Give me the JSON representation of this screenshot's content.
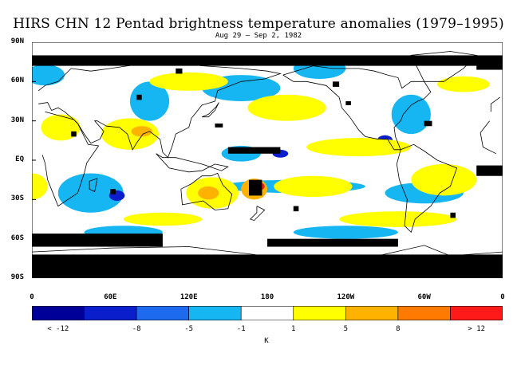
{
  "header": {
    "title": "HIRS CHN 12 Pentad brightness temperature anomalies (1979–1995)",
    "subtitle": "Aug 29 – Sep 2, 1982"
  },
  "axes": {
    "lat_ticks": [
      {
        "label": "90N",
        "lat": 90
      },
      {
        "label": "60N",
        "lat": 60
      },
      {
        "label": "30N",
        "lat": 30
      },
      {
        "label": "EQ",
        "lat": 0
      },
      {
        "label": "30S",
        "lat": -30
      },
      {
        "label": "60S",
        "lat": -60
      },
      {
        "label": "90S",
        "lat": -90
      }
    ],
    "lon_ticks": [
      {
        "label": "0",
        "lon": 0
      },
      {
        "label": "60E",
        "lon": 60
      },
      {
        "label": "120E",
        "lon": 120
      },
      {
        "label": "180",
        "lon": 180
      },
      {
        "label": "120W",
        "lon": 240
      },
      {
        "label": "60W",
        "lon": 300
      },
      {
        "label": "0",
        "lon": 360
      }
    ]
  },
  "legend": {
    "unit": "K",
    "bins": [
      {
        "color": "#000099"
      },
      {
        "color": "#0a1ecc"
      },
      {
        "color": "#1e6aee"
      },
      {
        "color": "#16b6f2"
      },
      {
        "color": "#ffffff"
      },
      {
        "color": "#ffff00"
      },
      {
        "color": "#ffb300"
      },
      {
        "color": "#ff7a00"
      },
      {
        "color": "#ff1a1a"
      }
    ],
    "labels": [
      {
        "text": "< -12",
        "pos": 0.5
      },
      {
        "text": "-8",
        "pos": 2
      },
      {
        "text": "-5",
        "pos": 3
      },
      {
        "text": "-1",
        "pos": 4
      },
      {
        "text": "1",
        "pos": 5
      },
      {
        "text": "5",
        "pos": 6
      },
      {
        "text": "8",
        "pos": 7
      },
      {
        "text": "> 12",
        "pos": 8.5
      }
    ],
    "missing_color": "#000000"
  },
  "map": {
    "projection": "cylindrical equidistant",
    "lon_range": [
      0,
      360
    ],
    "lat_range": [
      -90,
      90
    ],
    "features": {
      "yellow": [
        {
          "lon": 75,
          "lat": 20,
          "rlon": 22,
          "rlat": 12
        },
        {
          "lon": 22,
          "lat": 25,
          "rlon": 15,
          "rlat": 10
        },
        {
          "lon": 138,
          "lat": -25,
          "rlon": 20,
          "rlat": 12
        },
        {
          "lon": 215,
          "lat": -20,
          "rlon": 30,
          "rlat": 8
        },
        {
          "lon": 250,
          "lat": 10,
          "rlon": 40,
          "rlat": 7
        },
        {
          "lon": 315,
          "lat": -15,
          "rlon": 25,
          "rlat": 12
        },
        {
          "lon": 0,
          "lat": -20,
          "rlon": 12,
          "rlat": 10
        },
        {
          "lon": 195,
          "lat": 40,
          "rlon": 30,
          "rlat": 10
        },
        {
          "lon": 280,
          "lat": -45,
          "rlon": 45,
          "rlat": 6
        },
        {
          "lon": 120,
          "lat": 60,
          "rlon": 30,
          "rlat": 7
        },
        {
          "lon": 330,
          "lat": 58,
          "rlon": 20,
          "rlat": 6
        },
        {
          "lon": 100,
          "lat": -45,
          "rlon": 30,
          "rlat": 5
        }
      ],
      "orange": [
        {
          "lon": 135,
          "lat": -25,
          "rlon": 8,
          "rlat": 5
        },
        {
          "lon": 170,
          "lat": -22,
          "rlon": 10,
          "rlat": 8
        },
        {
          "lon": 84,
          "lat": 22,
          "rlon": 8,
          "rlat": 4
        }
      ],
      "red": [
        {
          "lon": 174,
          "lat": -20,
          "rlon": 4,
          "rlat": 3
        }
      ],
      "lightblue": [
        {
          "lon": 200,
          "lat": -20,
          "rlon": 55,
          "rlat": 5
        },
        {
          "lon": 300,
          "lat": -25,
          "rlon": 30,
          "rlat": 8
        },
        {
          "lon": 45,
          "lat": -25,
          "rlon": 25,
          "rlat": 15
        },
        {
          "lon": 160,
          "lat": 5,
          "rlon": 15,
          "rlat": 6
        },
        {
          "lon": 90,
          "lat": 45,
          "rlon": 15,
          "rlat": 15
        },
        {
          "lon": 160,
          "lat": 55,
          "rlon": 30,
          "rlat": 10
        },
        {
          "lon": 290,
          "lat": 35,
          "rlon": 15,
          "rlat": 15
        },
        {
          "lon": 220,
          "lat": 70,
          "rlon": 20,
          "rlat": 8
        },
        {
          "lon": 70,
          "lat": -55,
          "rlon": 30,
          "rlat": 5
        },
        {
          "lon": 240,
          "lat": -55,
          "rlon": 40,
          "rlat": 5
        },
        {
          "lon": 10,
          "lat": 65,
          "rlon": 15,
          "rlat": 8
        }
      ],
      "blue": [
        {
          "lon": 65,
          "lat": -27,
          "rlon": 6,
          "rlat": 4
        },
        {
          "lon": 270,
          "lat": 15,
          "rlon": 6,
          "rlat": 4
        },
        {
          "lon": 190,
          "lat": 5,
          "rlon": 6,
          "rlat": 3
        }
      ],
      "black": [
        {
          "lon": 0,
          "lat": 80,
          "w": 360,
          "h": 8
        },
        {
          "lon": 0,
          "lat": -72,
          "w": 360,
          "h": 18
        },
        {
          "lon": 0,
          "lat": -56,
          "w": 100,
          "h": 10
        },
        {
          "lon": 180,
          "lat": -60,
          "w": 100,
          "h": 6
        },
        {
          "lon": 340,
          "lat": -4,
          "w": 20,
          "h": 8
        },
        {
          "lon": 166,
          "lat": -15,
          "w": 10,
          "h": 12
        },
        {
          "lon": 150,
          "lat": 10,
          "w": 40,
          "h": 5
        },
        {
          "lon": 80,
          "lat": 50,
          "w": 4,
          "h": 4
        },
        {
          "lon": 140,
          "lat": 28,
          "w": 6,
          "h": 3
        },
        {
          "lon": 240,
          "lat": 45,
          "w": 4,
          "h": 3
        },
        {
          "lon": 300,
          "lat": 30,
          "w": 6,
          "h": 4
        },
        {
          "lon": 340,
          "lat": 75,
          "w": 20,
          "h": 6
        },
        {
          "lon": 30,
          "lat": 22,
          "w": 4,
          "h": 4
        },
        {
          "lon": 60,
          "lat": -22,
          "w": 4,
          "h": 4
        },
        {
          "lon": 200,
          "lat": -35,
          "w": 4,
          "h": 4
        },
        {
          "lon": 320,
          "lat": -40,
          "w": 4,
          "h": 4
        },
        {
          "lon": 110,
          "lat": 70,
          "w": 5,
          "h": 4
        },
        {
          "lon": 230,
          "lat": 60,
          "w": 5,
          "h": 4
        }
      ]
    },
    "coastlines": [
      {
        "name": "Africa",
        "points": [
          [
            -17,
            21
          ],
          [
            -10,
            30
          ],
          [
            10,
            37
          ],
          [
            32,
            31
          ],
          [
            35,
            28
          ],
          [
            43,
            12
          ],
          [
            51,
            11
          ],
          [
            42,
            -2
          ],
          [
            40,
            -10
          ],
          [
            35,
            -25
          ],
          [
            20,
            -35
          ],
          [
            18,
            -30
          ],
          [
            12,
            -15
          ],
          [
            10,
            -2
          ],
          [
            8,
            4
          ],
          [
            -5,
            5
          ],
          [
            -15,
            10
          ],
          [
            -17,
            21
          ]
        ]
      },
      {
        "name": "Madagascar",
        "points": [
          [
            44,
            -16
          ],
          [
            50,
            -14
          ],
          [
            48,
            -24
          ],
          [
            44,
            -22
          ],
          [
            44,
            -16
          ]
        ]
      },
      {
        "name": "Europe-Asia",
        "points": [
          [
            -9,
            37
          ],
          [
            -9,
            43
          ],
          [
            -2,
            48
          ],
          [
            5,
            53
          ],
          [
            10,
            57
          ],
          [
            20,
            60
          ],
          [
            30,
            70
          ],
          [
            45,
            68
          ],
          [
            60,
            70
          ],
          [
            80,
            73
          ],
          [
            100,
            77
          ],
          [
            130,
            72
          ],
          [
            160,
            70
          ],
          [
            180,
            68
          ],
          [
            190,
            66
          ],
          [
            178,
            62
          ],
          [
            160,
            60
          ],
          [
            142,
            53
          ],
          [
            140,
            45
          ],
          [
            130,
            42
          ],
          [
            126,
            37
          ],
          [
            122,
            32
          ],
          [
            120,
            25
          ],
          [
            110,
            20
          ],
          [
            107,
            10
          ],
          [
            104,
            2
          ],
          [
            100,
            6
          ],
          [
            98,
            16
          ],
          [
            90,
            22
          ],
          [
            85,
            20
          ],
          [
            80,
            13
          ],
          [
            77,
            8
          ],
          [
            73,
            20
          ],
          [
            67,
            25
          ],
          [
            57,
            26
          ],
          [
            50,
            30
          ],
          [
            48,
            30
          ],
          [
            55,
            22
          ],
          [
            52,
            16
          ],
          [
            45,
            13
          ],
          [
            40,
            20
          ],
          [
            35,
            28
          ],
          [
            32,
            31
          ],
          [
            25,
            37
          ],
          [
            20,
            40
          ],
          [
            15,
            38
          ],
          [
            12,
            44
          ],
          [
            5,
            43
          ],
          [
            -9,
            37
          ]
        ]
      },
      {
        "name": "Japan",
        "points": [
          [
            130,
            33
          ],
          [
            135,
            35
          ],
          [
            141,
            41
          ],
          [
            143,
            44
          ],
          [
            140,
            38
          ],
          [
            135,
            33
          ],
          [
            130,
            33
          ]
        ]
      },
      {
        "name": "Australia",
        "points": [
          [
            114,
            -22
          ],
          [
            122,
            -18
          ],
          [
            130,
            -12
          ],
          [
            137,
            -12
          ],
          [
            142,
            -10
          ],
          [
            146,
            -19
          ],
          [
            153,
            -26
          ],
          [
            150,
            -37
          ],
          [
            140,
            -38
          ],
          [
            131,
            -31
          ],
          [
            115,
            -34
          ],
          [
            114,
            -22
          ]
        ]
      },
      {
        "name": "New Zealand",
        "points": [
          [
            172,
            -35
          ],
          [
            178,
            -38
          ],
          [
            175,
            -41
          ],
          [
            170,
            -46
          ],
          [
            167,
            -45
          ],
          [
            172,
            -40
          ],
          [
            172,
            -35
          ]
        ]
      },
      {
        "name": "Indonesia",
        "points": [
          [
            95,
            5
          ],
          [
            105,
            -6
          ],
          [
            120,
            -9
          ],
          [
            130,
            -8
          ],
          [
            140,
            -3
          ],
          [
            150,
            -5
          ],
          [
            145,
            -8
          ],
          [
            130,
            -3
          ],
          [
            118,
            0
          ],
          [
            110,
            2
          ],
          [
            100,
            2
          ],
          [
            95,
            5
          ]
        ]
      },
      {
        "name": "North America",
        "points": [
          [
            192,
            65
          ],
          [
            200,
            60
          ],
          [
            210,
            60
          ],
          [
            225,
            57
          ],
          [
            235,
            48
          ],
          [
            237,
            40
          ],
          [
            243,
            33
          ],
          [
            250,
            23
          ],
          [
            255,
            18
          ],
          [
            265,
            16
          ],
          [
            272,
            16
          ],
          [
            277,
            8
          ],
          [
            282,
            8
          ],
          [
            278,
            18
          ],
          [
            277,
            25
          ],
          [
            282,
            30
          ],
          [
            284,
            35
          ],
          [
            290,
            42
          ],
          [
            295,
            45
          ],
          [
            300,
            47
          ],
          [
            305,
            52
          ],
          [
            300,
            60
          ],
          [
            290,
            60
          ],
          [
            283,
            55
          ],
          [
            280,
            63
          ],
          [
            272,
            65
          ],
          [
            262,
            68
          ],
          [
            250,
            70
          ],
          [
            230,
            70
          ],
          [
            215,
            72
          ],
          [
            192,
            65
          ]
        ]
      },
      {
        "name": "Greenland",
        "points": [
          [
            300,
            60
          ],
          [
            315,
            60
          ],
          [
            330,
            70
          ],
          [
            340,
            80
          ],
          [
            320,
            83
          ],
          [
            290,
            80
          ],
          [
            300,
            60
          ]
        ]
      },
      {
        "name": "South America",
        "points": [
          [
            282,
            8
          ],
          [
            292,
            12
          ],
          [
            300,
            7
          ],
          [
            310,
            0
          ],
          [
            325,
            -6
          ],
          [
            320,
            -20
          ],
          [
            312,
            -25
          ],
          [
            305,
            -35
          ],
          [
            293,
            -45
          ],
          [
            290,
            -55
          ],
          [
            285,
            -50
          ],
          [
            287,
            -30
          ],
          [
            281,
            -15
          ],
          [
            279,
            -3
          ],
          [
            282,
            8
          ]
        ]
      },
      {
        "name": "Antarctica",
        "points": [
          [
            0,
            -70
          ],
          [
            60,
            -67
          ],
          [
            120,
            -66
          ],
          [
            170,
            -72
          ],
          [
            200,
            -78
          ],
          [
            260,
            -74
          ],
          [
            300,
            -65
          ],
          [
            320,
            -73
          ],
          [
            360,
            -70
          ]
        ]
      }
    ]
  }
}
